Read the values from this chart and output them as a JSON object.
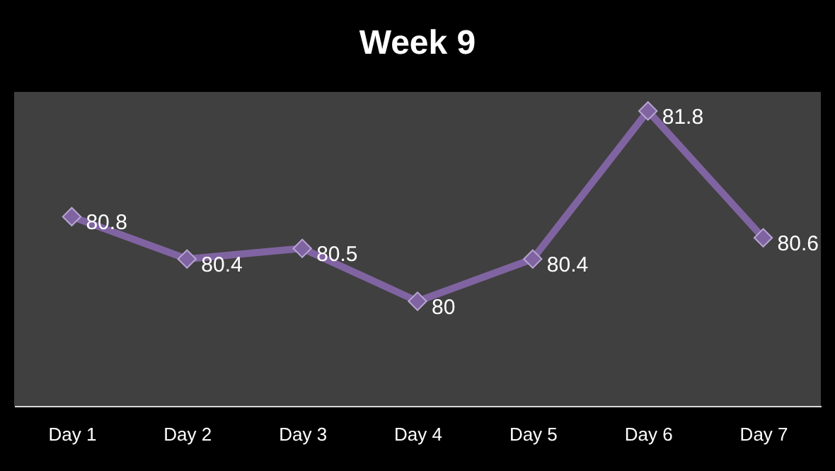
{
  "chart_data": {
    "type": "line",
    "title": "Week 9",
    "categories": [
      "Day 1",
      "Day 2",
      "Day 3",
      "Day 4",
      "Day 5",
      "Day 6",
      "Day 7"
    ],
    "series": [
      {
        "color": "#8064a2",
        "values": [
          80.8,
          80.4,
          80.5,
          80,
          80.4,
          81.8,
          80.6
        ]
      }
    ],
    "data_labels": true,
    "marker": "diamond",
    "line_style": "solid",
    "grid": false,
    "tick_labels": "x"
  }
}
